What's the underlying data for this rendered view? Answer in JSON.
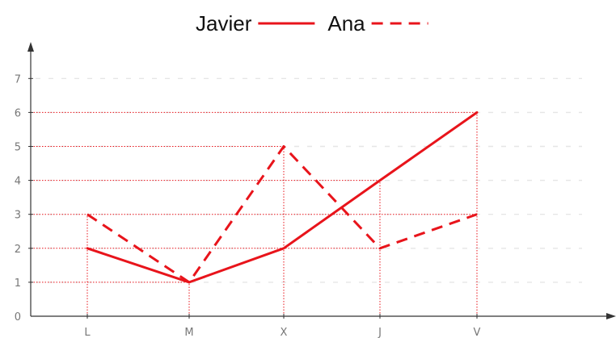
{
  "chart_data": {
    "type": "line",
    "categories": [
      "L",
      "M",
      "X",
      "J",
      "V"
    ],
    "series": [
      {
        "name": "Javier",
        "values": [
          2,
          1,
          2,
          4,
          6
        ],
        "style": "solid"
      },
      {
        "name": "Ana",
        "values": [
          3,
          1,
          5,
          2,
          3
        ],
        "style": "dashed"
      }
    ],
    "y_ticks": [
      "0",
      "1",
      "2",
      "3",
      "4",
      "5",
      "6",
      "7"
    ],
    "ylim": [
      0,
      7
    ],
    "legend_position": "top-center",
    "grid": true,
    "color": "#e8141b"
  }
}
